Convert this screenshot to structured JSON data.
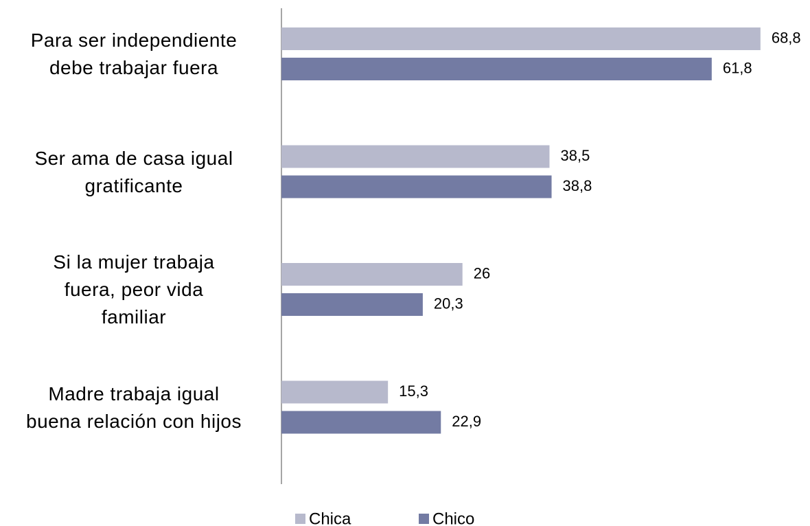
{
  "chart_data": {
    "type": "barh",
    "categories": [
      "Para ser independiente\ndebe trabajar fuera",
      "Ser ama de casa igual\ngratificante",
      "Si la mujer trabaja\nfuera, peor vida\nfamiliar",
      "Madre trabaja igual\nbuena relación con hijos"
    ],
    "series": [
      {
        "name": "Chica",
        "color": "#b7b9cc",
        "values": [
          68.8,
          38.5,
          26,
          15.3
        ],
        "value_labels": [
          "68,8",
          "38,5",
          "26",
          "15,3"
        ]
      },
      {
        "name": "Chico",
        "color": "#737ba3",
        "values": [
          61.8,
          38.8,
          20.3,
          22.9
        ],
        "value_labels": [
          "61,8",
          "38,8",
          "20,3",
          "22,9"
        ]
      }
    ],
    "xlim": [
      0,
      70
    ],
    "legend": "bottom"
  }
}
